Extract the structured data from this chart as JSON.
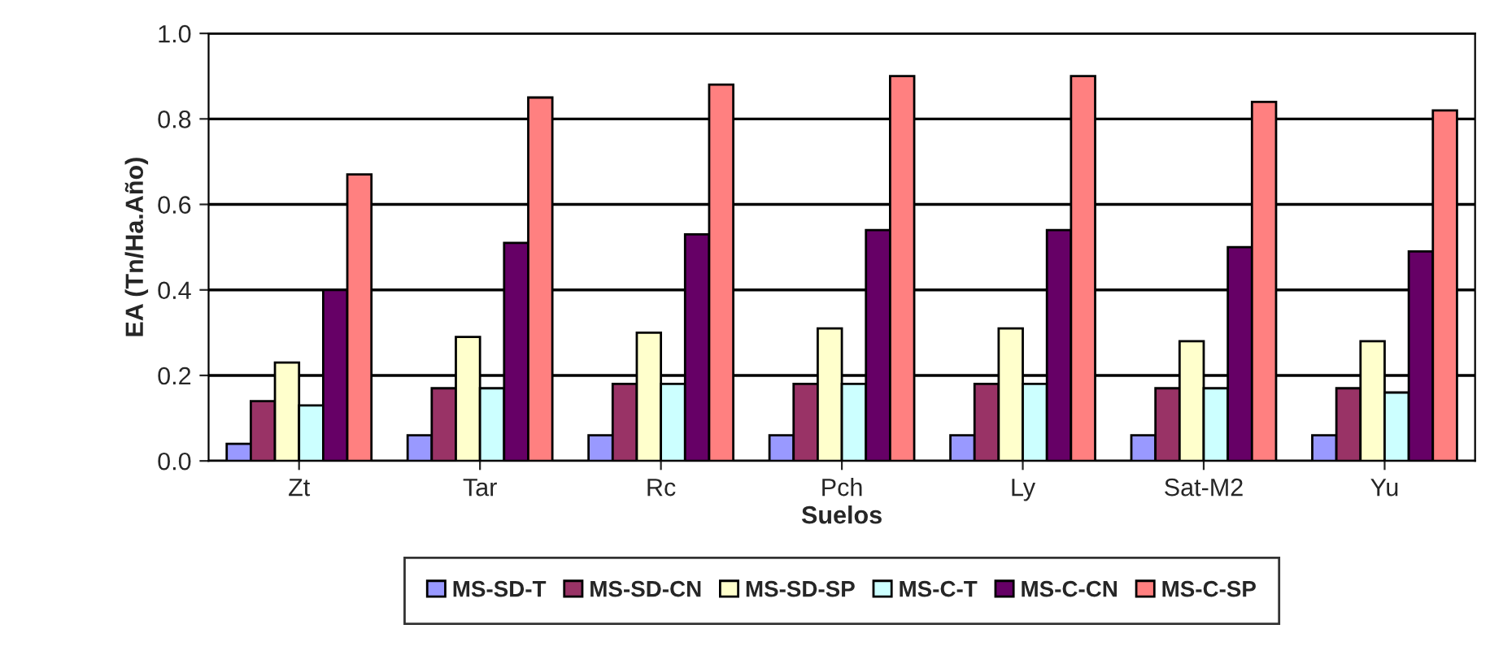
{
  "chart_data": {
    "type": "bar",
    "xlabel": "Suelos",
    "ylabel": "EA (Tn/Ha.Año)",
    "categories": [
      "Zt",
      "Tar",
      "Rc",
      "Pch",
      "Ly",
      "Sat-M2",
      "Yu"
    ],
    "series": [
      {
        "name": "MS-SD-T",
        "color": "#9999ff",
        "values": [
          0.04,
          0.06,
          0.06,
          0.06,
          0.06,
          0.06,
          0.06
        ]
      },
      {
        "name": "MS-SD-CN",
        "color": "#993366",
        "values": [
          0.14,
          0.17,
          0.18,
          0.18,
          0.18,
          0.17,
          0.17
        ]
      },
      {
        "name": "MS-SD-SP",
        "color": "#ffffcc",
        "values": [
          0.23,
          0.29,
          0.3,
          0.31,
          0.31,
          0.28,
          0.28
        ]
      },
      {
        "name": "MS-C-T",
        "color": "#ccffff",
        "values": [
          0.13,
          0.17,
          0.18,
          0.18,
          0.18,
          0.17,
          0.16
        ]
      },
      {
        "name": "MS-C-CN",
        "color": "#660066",
        "values": [
          0.4,
          0.51,
          0.53,
          0.54,
          0.54,
          0.5,
          0.49
        ]
      },
      {
        "name": "MS-C-SP",
        "color": "#ff8080",
        "values": [
          0.67,
          0.85,
          0.88,
          0.9,
          0.9,
          0.84,
          0.82
        ]
      }
    ],
    "ylim": [
      0,
      1.0
    ],
    "yticks": [
      {
        "value": 0,
        "label": "0.0"
      },
      {
        "value": 0.2,
        "label": "0.2"
      },
      {
        "value": 0.4,
        "label": "0.4"
      },
      {
        "value": 0.6,
        "label": "0.6"
      },
      {
        "value": 0.8,
        "label": "0.8"
      },
      {
        "value": 1.0,
        "label": "1.0"
      }
    ],
    "grid": "y",
    "legend": "bottom"
  }
}
